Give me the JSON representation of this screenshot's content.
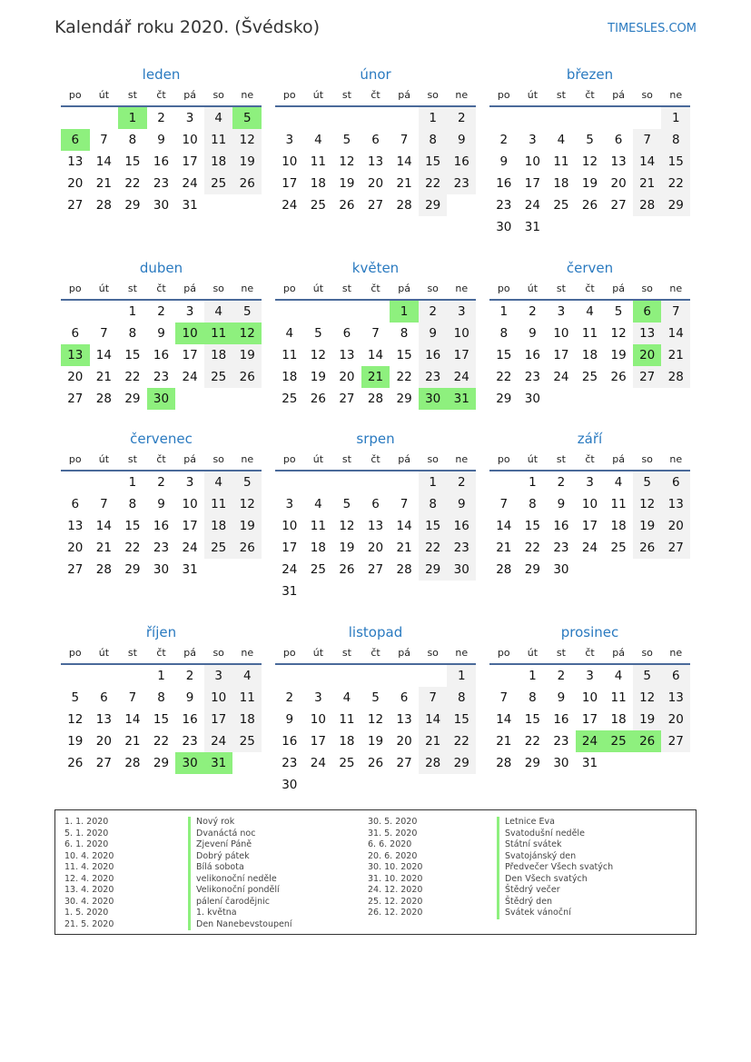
{
  "header": {
    "title": "Kalendář roku 2020. (Švédsko)",
    "brand": "TIMESLES.COM"
  },
  "weekdays": [
    "po",
    "út",
    "st",
    "čt",
    "pá",
    "so",
    "ne"
  ],
  "colors": {
    "holiday": "#8ef07e",
    "weekend": "#f2f2f2",
    "accent": "#2a7ac0"
  },
  "months": [
    {
      "name": "leden",
      "start_weekday": "st",
      "days": 31,
      "holidays": [
        1,
        5,
        6
      ]
    },
    {
      "name": "únor",
      "start_weekday": "so",
      "days": 29,
      "holidays": []
    },
    {
      "name": "březen",
      "start_weekday": "ne",
      "days": 31,
      "holidays": []
    },
    {
      "name": "duben",
      "start_weekday": "st",
      "days": 30,
      "holidays": [
        10,
        11,
        12,
        13,
        30
      ]
    },
    {
      "name": "květen",
      "start_weekday": "pá",
      "days": 31,
      "holidays": [
        1,
        21,
        30,
        31
      ]
    },
    {
      "name": "červen",
      "start_weekday": "po",
      "days": 30,
      "holidays": [
        6,
        20
      ]
    },
    {
      "name": "červenec",
      "start_weekday": "st",
      "days": 31,
      "holidays": []
    },
    {
      "name": "srpen",
      "start_weekday": "so",
      "days": 31,
      "holidays": []
    },
    {
      "name": "září",
      "start_weekday": "út",
      "days": 30,
      "holidays": []
    },
    {
      "name": "říjen",
      "start_weekday": "čt",
      "days": 31,
      "holidays": [
        30,
        31
      ]
    },
    {
      "name": "listopad",
      "start_weekday": "ne",
      "days": 30,
      "holidays": []
    },
    {
      "name": "prosinec",
      "start_weekday": "út",
      "days": 31,
      "holidays": [
        24,
        25,
        26
      ]
    }
  ],
  "legend": [
    {
      "date": "1. 1. 2020",
      "name": "Nový rok"
    },
    {
      "date": "5. 1. 2020",
      "name": "Dvanáctá noc"
    },
    {
      "date": "6. 1. 2020",
      "name": "Zjevení Páně"
    },
    {
      "date": "10. 4. 2020",
      "name": "Dobrý pátek"
    },
    {
      "date": "11. 4. 2020",
      "name": "Bílá sobota"
    },
    {
      "date": "12. 4. 2020",
      "name": "velikonoční neděle"
    },
    {
      "date": "13. 4. 2020",
      "name": "Velikonoční pondělí"
    },
    {
      "date": "30. 4. 2020",
      "name": "pálení čarodějnic"
    },
    {
      "date": "1. 5. 2020",
      "name": "1. května"
    },
    {
      "date": "21. 5. 2020",
      "name": "Den Nanebevstoupení"
    },
    {
      "date": "30. 5. 2020",
      "name": "Letnice Eva"
    },
    {
      "date": "31. 5. 2020",
      "name": "Svatodušní neděle"
    },
    {
      "date": "6. 6. 2020",
      "name": "Státní svátek"
    },
    {
      "date": "20. 6. 2020",
      "name": "Svatojánský den"
    },
    {
      "date": "30. 10. 2020",
      "name": "Předvečer Všech svatých"
    },
    {
      "date": "31. 10. 2020",
      "name": "Den Všech svatých"
    },
    {
      "date": "24. 12. 2020",
      "name": "Štědrý večer"
    },
    {
      "date": "25. 12. 2020",
      "name": "Štědrý den"
    },
    {
      "date": "26. 12. 2020",
      "name": "Svátek vánoční"
    }
  ]
}
